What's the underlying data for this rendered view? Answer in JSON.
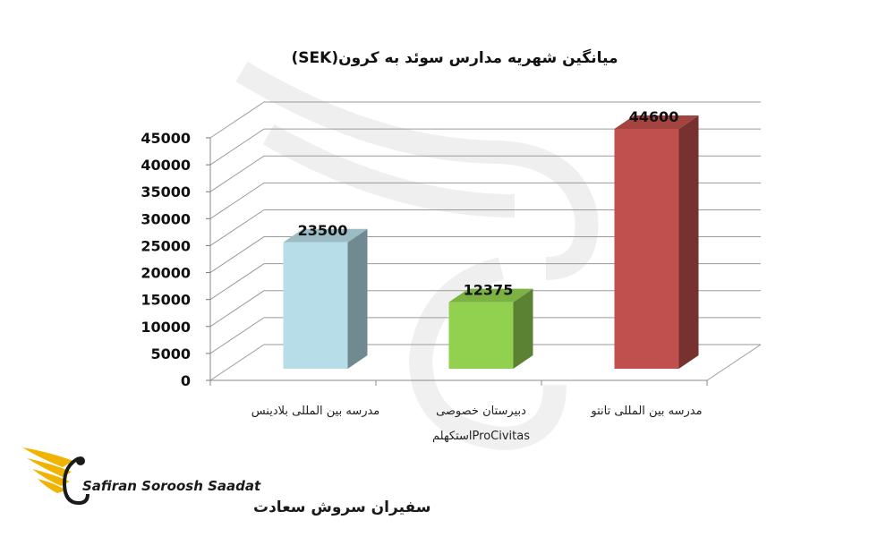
{
  "chart_data": {
    "type": "bar",
    "title": "میانگین شهریه مدارس سوئد به کرون(SEK)",
    "categories": [
      [
        "مدرسه بین المللی بلادینس"
      ],
      [
        "دبیرستان خصوصی",
        "ProCivitasاستکهلم"
      ],
      [
        "مدرسه بین المللی تانتو"
      ]
    ],
    "values": [
      23500,
      12375,
      44600
    ],
    "data_labels": [
      "23500",
      "12375",
      "44600"
    ],
    "colors": [
      "#b7dde8",
      "#92d050",
      "#c0504d"
    ],
    "ylim": [
      0,
      45000
    ],
    "yticks": [
      "0",
      "5000",
      "10000",
      "15000",
      "20000",
      "25000",
      "30000",
      "35000",
      "40000",
      "45000"
    ],
    "grid": true,
    "legend": "none"
  },
  "logo": {
    "name_en": "Safiran Soroosh Saadat",
    "name_fa": "سفیران سروش سعادت"
  }
}
